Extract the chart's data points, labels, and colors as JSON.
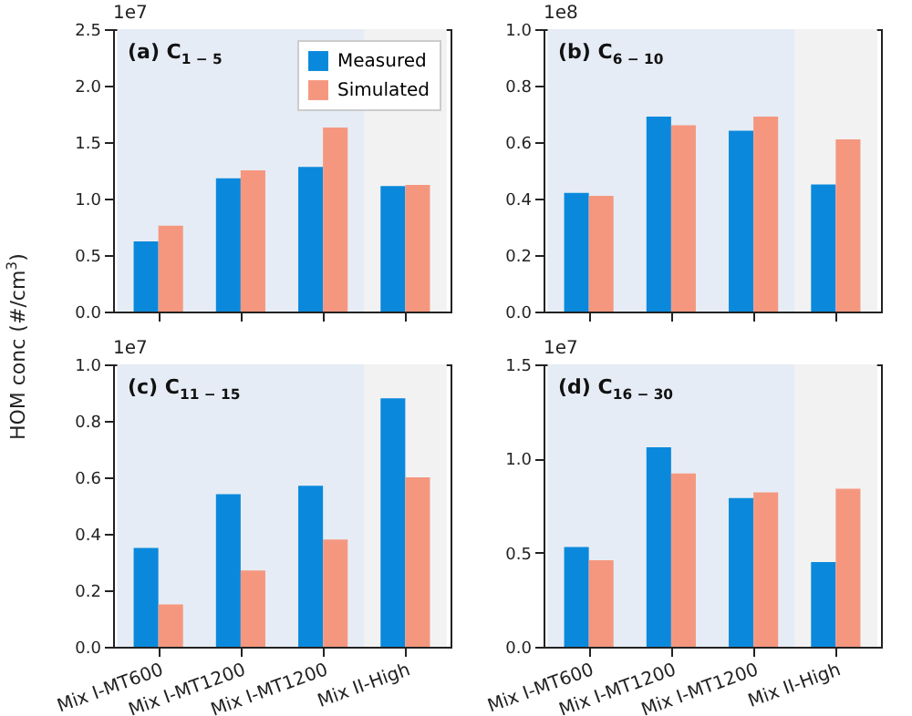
{
  "chart_data": [
    {
      "type": "bar",
      "title": "(a) C$_{1 − 5}$",
      "ylabel": "HOM conc (#/cm$^{3}$)",
      "annotations": [
        "1e7"
      ],
      "categories": [
        "Mix I-MT600",
        "Mix I-MT1200",
        "Mix I-MT1200",
        "Mix II-High"
      ],
      "series": [
        {
          "name": "Measured",
          "color": "#0a89dc",
          "values": [
            0.62,
            1.18,
            1.28,
            1.11
          ]
        },
        {
          "name": "Simulated",
          "color": "#f5977f",
          "values": [
            0.76,
            1.25,
            1.63,
            1.12
          ]
        }
      ],
      "ylim": [
        0,
        2.5
      ],
      "yticks": [
        {
          "value": 0,
          "label": "0.0"
        },
        0.5,
        {
          "value": 1,
          "label": "1.0"
        },
        1.5,
        {
          "value": 2,
          "label": "2.0"
        },
        2.5
      ],
      "tick_labels": "y",
      "legend": "top right",
      "bands": [
        {
          "axis": "x",
          "from": "Mix I-MT600",
          "to": "Mix II-High",
          "color": "#e6ecf5"
        },
        {
          "axis": "x",
          "from": "Mix II-High",
          "to": "Mix II-High",
          "color": "#f2f2f2"
        }
      ]
    },
    {
      "type": "bar",
      "title": "(b) C$_{6 − 10}$",
      "annotations": [
        "1e8"
      ],
      "categories": [
        "Mix I-MT600",
        "Mix I-MT1200",
        "Mix I-MT1200",
        "Mix II-High"
      ],
      "series": [
        {
          "color": "#0a89dc",
          "values": [
            0.42,
            0.69,
            0.64,
            0.45
          ]
        },
        {
          "color": "#f5977f",
          "values": [
            0.41,
            0.66,
            0.69,
            0.61
          ]
        }
      ],
      "ylim": [
        0,
        1
      ],
      "yticks": [
        {
          "value": 0,
          "label": "0.0"
        },
        0.2,
        0.4,
        0.6,
        0.8,
        {
          "value": 1,
          "label": "1.0"
        }
      ],
      "tick_labels": "y",
      "bands": [
        {
          "axis": "x",
          "from": "Mix I-MT600",
          "to": "Mix II-High",
          "color": "#e6ecf5"
        },
        {
          "axis": "x",
          "from": "Mix II-High",
          "to": "Mix II-High",
          "color": "#f2f2f2"
        }
      ]
    },
    {
      "type": "bar",
      "title": "(c) C$_{11 − 15}$",
      "annotations": [
        "1e7"
      ],
      "categories": [
        "Mix I-MT600",
        "Mix I-MT1200",
        "Mix I-MT1200",
        "Mix II-High"
      ],
      "series": [
        {
          "color": "#0a89dc",
          "values": [
            0.35,
            0.54,
            0.57,
            0.88
          ]
        },
        {
          "color": "#f5977f",
          "values": [
            0.15,
            0.27,
            0.38,
            0.6
          ]
        }
      ],
      "ylim": [
        0,
        1
      ],
      "yticks": [
        {
          "value": 0,
          "label": "0.0"
        },
        0.2,
        0.4,
        0.6,
        0.8,
        {
          "value": 1,
          "label": "1.0"
        }
      ],
      "bands": [
        {
          "axis": "x",
          "from": "Mix I-MT600",
          "to": "Mix II-High",
          "color": "#e6ecf5"
        },
        {
          "axis": "x",
          "from": "Mix II-High",
          "to": "Mix II-High",
          "color": "#f2f2f2"
        }
      ]
    },
    {
      "type": "bar",
      "title": "(d) C$_{16 − 30}$",
      "annotations": [
        "1e7"
      ],
      "categories": [
        "Mix I-MT600",
        "Mix I-MT1200",
        "Mix I-MT1200",
        "Mix II-High"
      ],
      "series": [
        {
          "color": "#0a89dc",
          "values": [
            0.53,
            1.06,
            0.79,
            0.45
          ]
        },
        {
          "color": "#f5977f",
          "values": [
            0.46,
            0.92,
            0.82,
            0.84
          ]
        }
      ],
      "ylim": [
        0,
        1.5
      ],
      "yticks": [
        {
          "value": 0,
          "label": "0.0"
        },
        0.5,
        {
          "value": 1,
          "label": "1.0"
        },
        1.5
      ],
      "bands": [
        {
          "axis": "x",
          "from": "Mix I-MT600",
          "to": "Mix II-High",
          "color": "#e6ecf5"
        },
        {
          "axis": "x",
          "from": "Mix II-High",
          "to": "Mix II-High",
          "color": "#f2f2f2"
        }
      ]
    }
  ]
}
